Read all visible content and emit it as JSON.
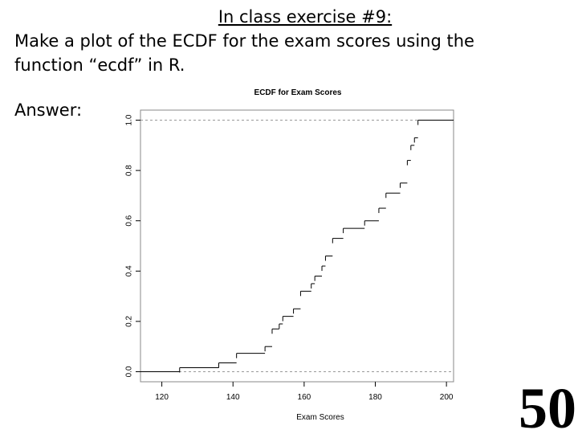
{
  "slide": {
    "heading": "In class exercise #9:",
    "lines": [
      "Make a plot of the ECDF for the exam scores using the",
      "function “ecdf” in R."
    ],
    "answer": "Answer:",
    "page_number": "50"
  },
  "chart_data": {
    "type": "ecdf",
    "title": "ECDF for Exam Scores",
    "x_label": "Exam Scores",
    "x": [
      125,
      136,
      141,
      149,
      151,
      153,
      154,
      157,
      159,
      162,
      163,
      165,
      166,
      168,
      171,
      177,
      181,
      183,
      187,
      189,
      190,
      191,
      192
    ],
    "values": [
      0.016,
      0.035,
      0.073,
      0.1,
      0.17,
      0.19,
      0.22,
      0.25,
      0.32,
      0.35,
      0.38,
      0.42,
      0.46,
      0.53,
      0.57,
      0.6,
      0.65,
      0.71,
      0.75,
      0.84,
      0.9,
      0.93,
      1.0
    ],
    "color": "#000000",
    "xlim": [
      114,
      202
    ],
    "ylim": [
      -0.04,
      1.04
    ],
    "xticks": [
      120,
      140,
      160,
      180,
      200
    ],
    "yticks": [
      {
        "value": 0,
        "label": "0.0"
      },
      0.2,
      0.4,
      0.6,
      0.8,
      {
        "value": 1,
        "label": "1.0"
      }
    ]
  }
}
